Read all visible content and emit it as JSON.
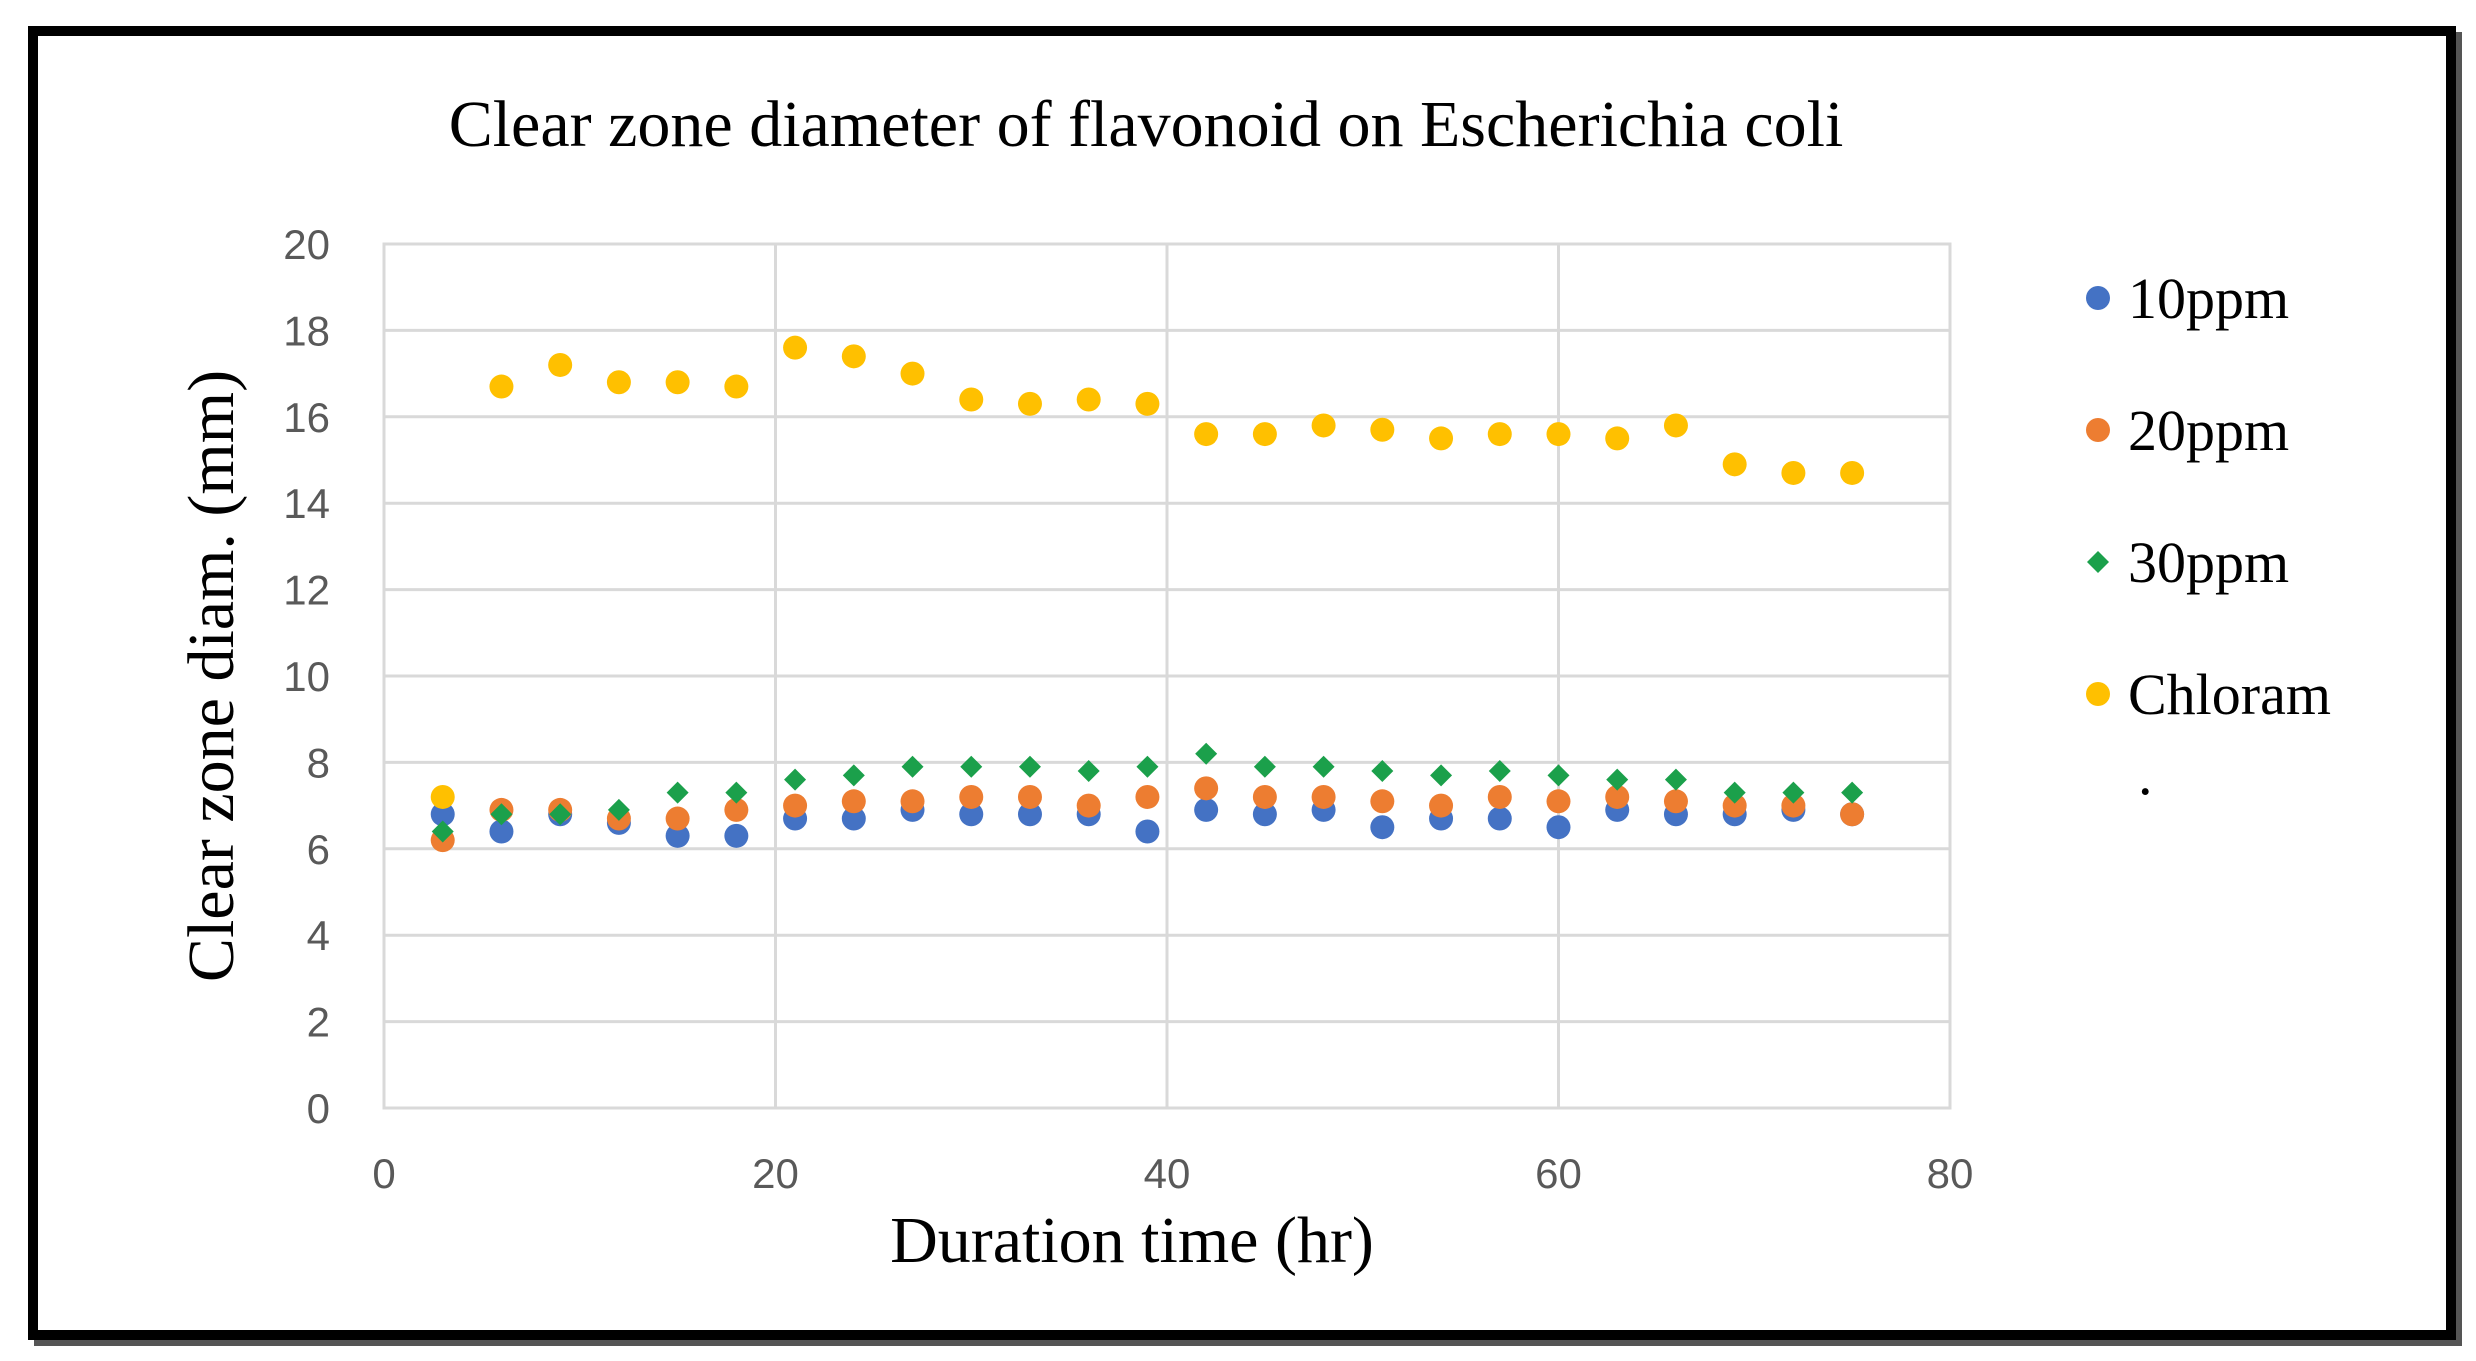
{
  "chart_data": {
    "type": "scatter",
    "title": "Clear zone diameter of flavonoid on Escherichia coli",
    "xlabel": "Duration time (hr)",
    "ylabel": "Clear zone diam. (mm)",
    "xlim": [
      0,
      80
    ],
    "ylim": [
      0,
      20
    ],
    "xticks": [
      "0",
      "20",
      "40",
      "60",
      "80"
    ],
    "yticks": [
      "0",
      "2",
      "4",
      "6",
      "8",
      "10",
      "12",
      "14",
      "16",
      "18",
      "20"
    ],
    "grid": true,
    "legend_position": "right",
    "legend_trailing_mark": ".",
    "x": [
      3,
      6,
      9,
      12,
      15,
      18,
      21,
      24,
      27,
      30,
      33,
      36,
      39,
      42,
      45,
      48,
      51,
      54,
      57,
      60,
      63,
      66,
      69,
      72,
      75
    ],
    "series": [
      {
        "name": " 10ppm",
        "color": "#4472C4",
        "marker": "circle",
        "values": [
          6.8,
          6.4,
          6.8,
          6.6,
          6.3,
          6.3,
          6.7,
          6.7,
          6.9,
          6.8,
          6.8,
          6.8,
          6.4,
          6.9,
          6.8,
          6.9,
          6.5,
          6.7,
          6.7,
          6.5,
          6.9,
          6.8,
          6.8,
          6.9,
          6.8
        ]
      },
      {
        "name": "20ppm",
        "color": "#ED7D31",
        "marker": "circle",
        "values": [
          6.2,
          6.9,
          6.9,
          6.7,
          6.7,
          6.9,
          7.0,
          7.1,
          7.1,
          7.2,
          7.2,
          7.0,
          7.2,
          7.4,
          7.2,
          7.2,
          7.1,
          7.0,
          7.2,
          7.1,
          7.2,
          7.1,
          7.0,
          7.0,
          6.8
        ]
      },
      {
        "name": "30ppm",
        "color": "#1BA04B",
        "marker": "diamond",
        "values": [
          6.4,
          6.8,
          6.8,
          6.9,
          7.3,
          7.3,
          7.6,
          7.7,
          7.9,
          7.9,
          7.9,
          7.8,
          7.9,
          8.2,
          7.9,
          7.9,
          7.8,
          7.7,
          7.8,
          7.7,
          7.6,
          7.6,
          7.3,
          7.3,
          7.3
        ]
      },
      {
        "name": "Chloram",
        "color": "#FFC000",
        "marker": "circle",
        "values": [
          7.2,
          16.7,
          17.2,
          16.8,
          16.8,
          16.7,
          17.6,
          17.4,
          17.0,
          16.4,
          16.3,
          16.4,
          16.3,
          15.6,
          15.6,
          15.8,
          15.7,
          15.5,
          15.6,
          15.6,
          15.5,
          15.8,
          14.9,
          14.7,
          14.7
        ]
      }
    ]
  }
}
